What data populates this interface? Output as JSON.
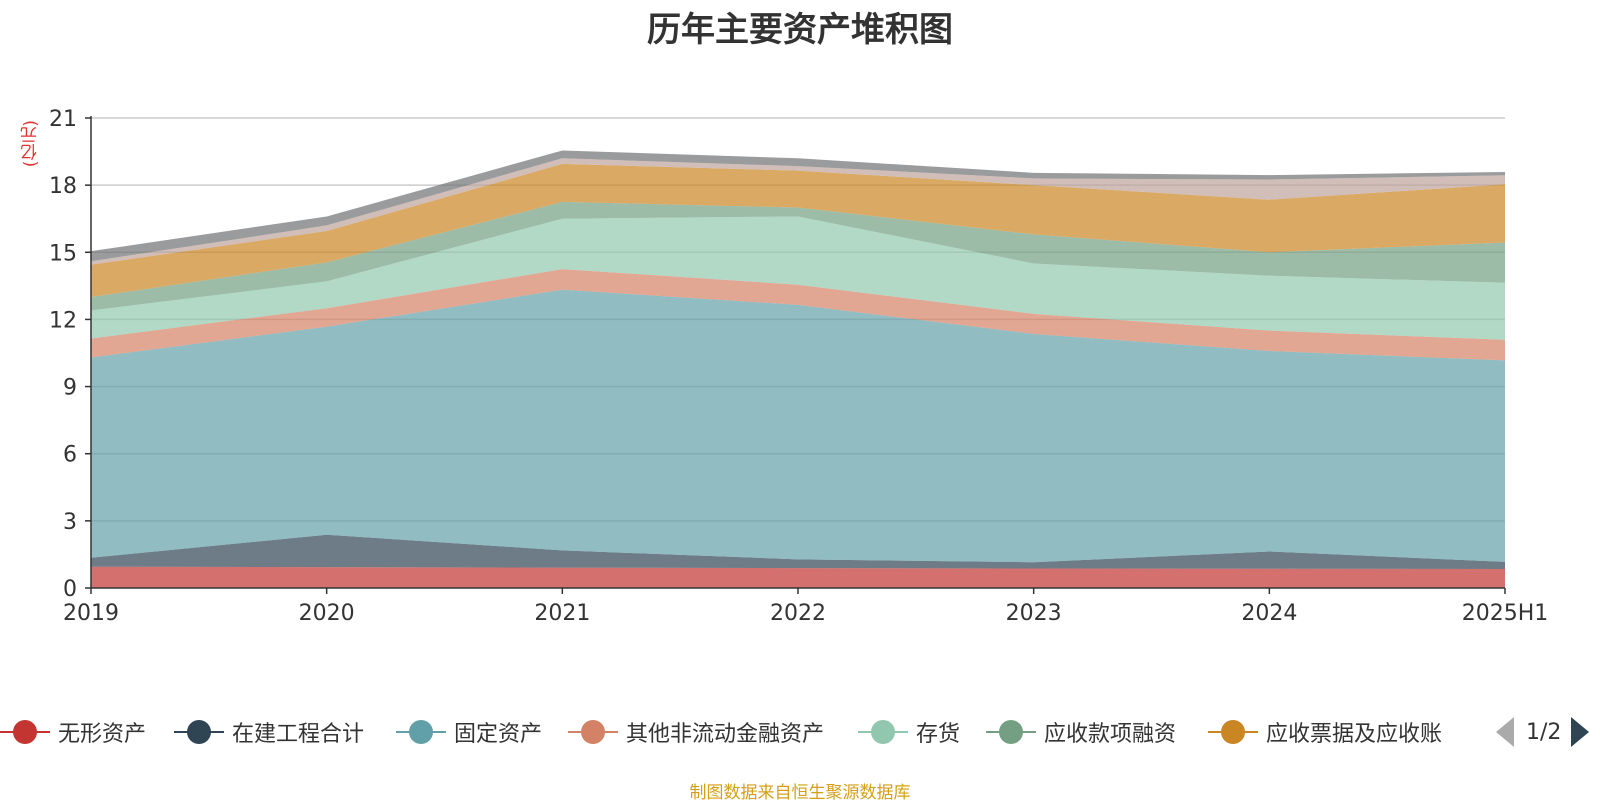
{
  "title": "历年主要资产堆积图",
  "unit_label": "(亿元)",
  "source": "制图数据来自恒生聚源数据库",
  "pager": {
    "text": "1/2"
  },
  "legend": [
    {
      "label": "无形资产",
      "color": "#c23531"
    },
    {
      "label": "在建工程合计",
      "color": "#2f4554"
    },
    {
      "label": "固定资产",
      "color": "#61a0a8"
    },
    {
      "label": "其他非流动金融资产",
      "color": "#d48265"
    },
    {
      "label": "存货",
      "color": "#91c7ae"
    },
    {
      "label": "应收款项融资",
      "color": "#749f83"
    },
    {
      "label": "应收票据及应收账",
      "color": "#ca8622"
    }
  ],
  "chart_data": {
    "type": "area",
    "stacked": true,
    "title": "历年主要资产堆积图",
    "ylabel": "(亿元)",
    "categories": [
      "2019",
      "2020",
      "2021",
      "2022",
      "2023",
      "2024",
      "2025H1"
    ],
    "ylim": [
      0,
      21
    ],
    "yticks": [
      0,
      3,
      6,
      9,
      12,
      15,
      18,
      21
    ],
    "grid": true,
    "legend_position": "bottom",
    "series": [
      {
        "name": "无形资产",
        "color": "#c23531",
        "values": [
          0.95,
          0.93,
          0.91,
          0.89,
          0.87,
          0.86,
          0.85
        ]
      },
      {
        "name": "在建工程合计",
        "color": "#2f4554",
        "values": [
          0.4,
          1.45,
          0.77,
          0.39,
          0.28,
          0.77,
          0.32
        ]
      },
      {
        "name": "固定资产",
        "color": "#61a0a8",
        "values": [
          8.95,
          9.3,
          11.65,
          11.37,
          10.2,
          8.96,
          9.0
        ]
      },
      {
        "name": "其他非流动金融资产",
        "color": "#d48265",
        "values": [
          0.85,
          0.82,
          0.92,
          0.9,
          0.9,
          0.91,
          0.92
        ]
      },
      {
        "name": "存货",
        "color": "#91c7ae",
        "values": [
          1.25,
          1.2,
          2.25,
          3.05,
          2.25,
          2.45,
          2.55
        ]
      },
      {
        "name": "应收款项融资",
        "color": "#749f83",
        "values": [
          0.6,
          0.85,
          0.75,
          0.4,
          1.3,
          1.05,
          1.8
        ]
      },
      {
        "name": "应收票据及应收账",
        "color": "#ca8622",
        "values": [
          1.45,
          1.4,
          1.7,
          1.65,
          2.2,
          2.35,
          2.6
        ]
      },
      {
        "name": "",
        "color": "#bda29a",
        "values": [
          0.15,
          0.25,
          0.25,
          0.2,
          0.3,
          0.9,
          0.4
        ]
      },
      {
        "name": "",
        "color": "#6e7074",
        "values": [
          0.45,
          0.4,
          0.35,
          0.35,
          0.25,
          0.2,
          0.15
        ]
      }
    ]
  }
}
